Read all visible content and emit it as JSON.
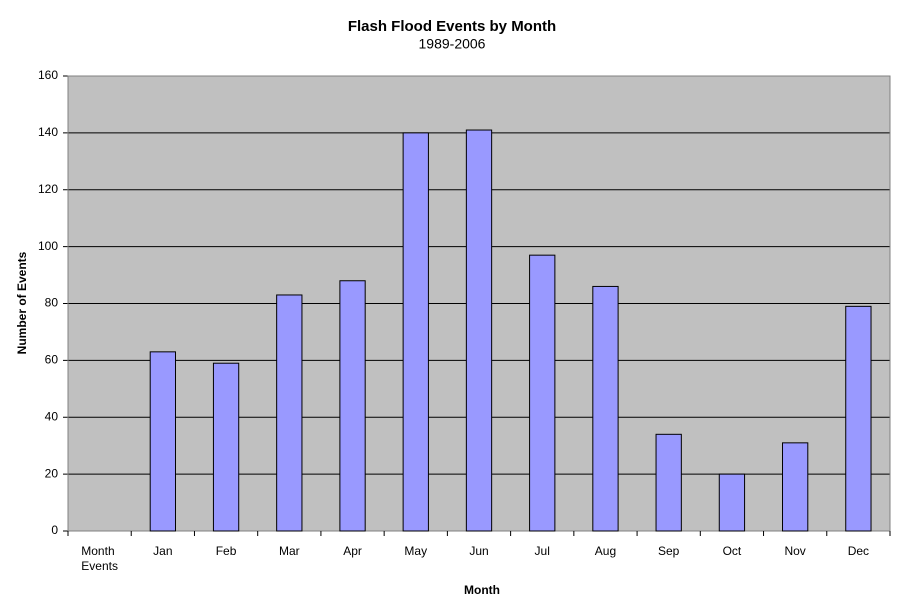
{
  "chart_data": {
    "type": "bar",
    "title": "Flash Flood Events by Month",
    "subtitle": "1989-2006",
    "x_label": "Month",
    "y_label": "Number of Events",
    "categories": [
      "Month Events",
      "Jan",
      "Feb",
      "Mar",
      "Apr",
      "May",
      "Jun",
      "Jul",
      "Aug",
      "Sep",
      "Oct",
      "Nov",
      "Dec"
    ],
    "values": [
      null,
      63,
      59,
      83,
      88,
      140,
      141,
      97,
      86,
      34,
      20,
      31,
      79
    ],
    "color": "#9999ff",
    "ylim": [
      0,
      160
    ],
    "yticks": [
      0,
      20,
      40,
      60,
      80,
      100,
      120,
      140,
      160
    ],
    "grid": true
  }
}
